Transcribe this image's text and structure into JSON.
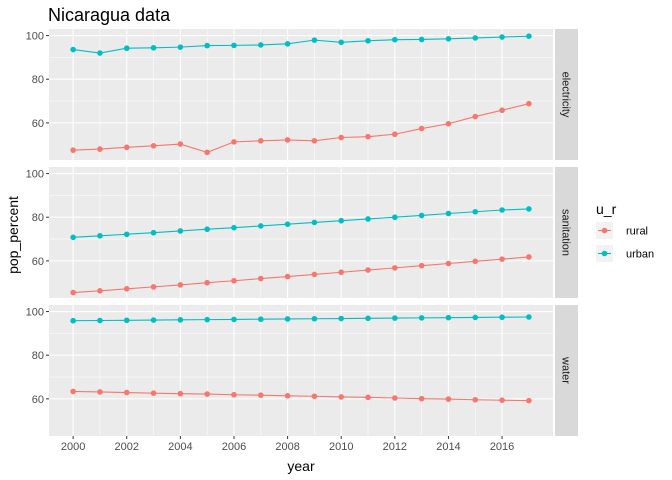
{
  "chart_data": {
    "type": "line",
    "title": "Nicaragua data",
    "xlabel": "year",
    "ylabel": "pop_percent",
    "x": [
      2000,
      2001,
      2002,
      2003,
      2004,
      2005,
      2006,
      2007,
      2008,
      2009,
      2010,
      2011,
      2012,
      2013,
      2014,
      2015,
      2016,
      2017
    ],
    "x_ticks": [
      2000,
      2002,
      2004,
      2006,
      2008,
      2010,
      2012,
      2014,
      2016
    ],
    "xlim": [
      1999.1,
      2017.9
    ],
    "y_ticks": [
      60,
      80,
      100
    ],
    "ylim": [
      43,
      103
    ],
    "grid": true,
    "legend": {
      "title": "u_r",
      "placement": "right",
      "entries": [
        {
          "label": "rural",
          "color": "#F8766D"
        },
        {
          "label": "urban",
          "color": "#00BFC4"
        }
      ]
    },
    "panels": [
      {
        "label": "electricity",
        "series": [
          {
            "name": "rural",
            "color": "#F8766D",
            "values": [
              47.5,
              48.0,
              48.8,
              49.5,
              50.3,
              46.5,
              51.3,
              51.8,
              52.2,
              51.8,
              53.3,
              53.7,
              54.8,
              57.4,
              59.6,
              62.9,
              65.8,
              68.8
            ]
          },
          {
            "name": "urban",
            "color": "#00BFC4",
            "values": [
              93.6,
              92.0,
              94.2,
              94.4,
              94.7,
              95.4,
              95.5,
              95.7,
              96.2,
              97.9,
              96.9,
              97.6,
              98.1,
              98.2,
              98.5,
              98.9,
              99.3,
              99.7
            ]
          }
        ]
      },
      {
        "label": "sanitation",
        "series": [
          {
            "name": "rural",
            "color": "#F8766D",
            "values": [
              45.5,
              46.3,
              47.2,
              48.1,
              49.0,
              50.0,
              50.9,
              51.9,
              52.8,
              53.8,
              54.8,
              55.8,
              56.8,
              57.8,
              58.8,
              59.8,
              60.8,
              61.8
            ]
          },
          {
            "name": "urban",
            "color": "#00BFC4",
            "values": [
              70.8,
              71.5,
              72.2,
              72.9,
              73.7,
              74.5,
              75.2,
              76.0,
              76.8,
              77.6,
              78.4,
              79.2,
              80.0,
              80.8,
              81.7,
              82.5,
              83.3,
              83.8
            ]
          }
        ]
      },
      {
        "label": "water",
        "series": [
          {
            "name": "rural",
            "color": "#F8766D",
            "values": [
              63.4,
              63.2,
              62.9,
              62.6,
              62.4,
              62.2,
              61.9,
              61.7,
              61.4,
              61.2,
              60.9,
              60.7,
              60.4,
              60.1,
              59.9,
              59.6,
              59.4,
              59.2
            ]
          },
          {
            "name": "urban",
            "color": "#00BFC4",
            "values": [
              95.8,
              95.9,
              96.0,
              96.1,
              96.2,
              96.3,
              96.4,
              96.5,
              96.6,
              96.7,
              96.8,
              96.9,
              97.0,
              97.1,
              97.2,
              97.3,
              97.4,
              97.5
            ]
          }
        ]
      }
    ]
  }
}
